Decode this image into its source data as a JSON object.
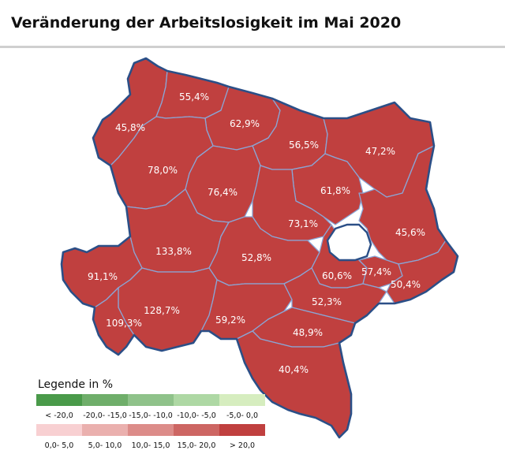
{
  "title": "Veränderung der Arbeitslosigkeit im Mai 2020",
  "colors": {
    "district_fill": "#c0403f",
    "district_border": "#8aa6d6",
    "outline": "#2b4f87"
  },
  "districts": [
    {
      "id": "gmuend",
      "label": "45,8%"
    },
    {
      "id": "waidhofen-thaya",
      "label": "55,4%"
    },
    {
      "id": "horn",
      "label": "62,9%"
    },
    {
      "id": "hollabrunn",
      "label": "56,5%"
    },
    {
      "id": "mistelbach",
      "label": "47,2%"
    },
    {
      "id": "zwettl",
      "label": "78,0%"
    },
    {
      "id": "krems",
      "label": "76,4%"
    },
    {
      "id": "korneuburg",
      "label": "61,8%"
    },
    {
      "id": "tulln",
      "label": "73,1%"
    },
    {
      "id": "gaenserndorf",
      "label": "45,6%"
    },
    {
      "id": "melk",
      "label": "133,8%"
    },
    {
      "id": "st-poelten",
      "label": "52,8%"
    },
    {
      "id": "amstetten",
      "label": "91,1%"
    },
    {
      "id": "moedling",
      "label": "60,6%"
    },
    {
      "id": "bruck-leitha",
      "label": "57,4%"
    },
    {
      "id": "bruck-leitha-east",
      "label": "50,4%"
    },
    {
      "id": "scheibbs",
      "label": "128,7%"
    },
    {
      "id": "waidhofen-ybbs",
      "label": "109,3%"
    },
    {
      "id": "lilienfeld",
      "label": "59,2%"
    },
    {
      "id": "baden",
      "label": "52,3%"
    },
    {
      "id": "wiener-neustadt",
      "label": "48,9%"
    },
    {
      "id": "neunkirchen",
      "label": "40,4%"
    }
  ],
  "legend": {
    "title": "Legende in %",
    "negative": [
      {
        "label": "< -20,0",
        "color": "#4a9a4a"
      },
      {
        "label": "-20,0- -15,0",
        "color": "#6fae6a"
      },
      {
        "label": "-15,0- -10,0",
        "color": "#8fc28a"
      },
      {
        "label": "-10,0- -5,0",
        "color": "#aed8a4"
      },
      {
        "label": "-5,0- 0,0",
        "color": "#d6edbf"
      }
    ],
    "positive": [
      {
        "label": "0,0- 5,0",
        "color": "#f8d0d2"
      },
      {
        "label": "5,0- 10,0",
        "color": "#eab0ae"
      },
      {
        "label": "10,0- 15,0",
        "color": "#dc8c89"
      },
      {
        "label": "15,0- 20,0",
        "color": "#cd6663"
      },
      {
        "label": "> 20,0",
        "color": "#c0403f"
      }
    ]
  }
}
